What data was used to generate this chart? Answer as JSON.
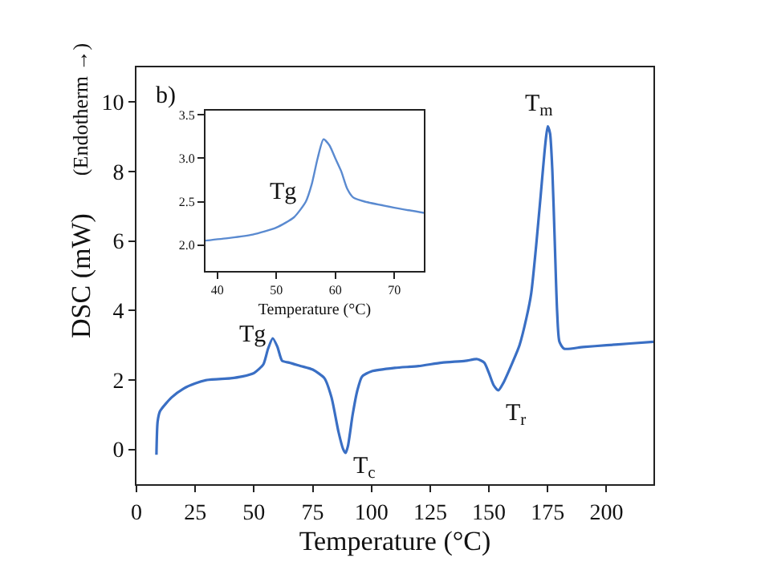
{
  "chart_data": [
    {
      "type": "line",
      "xlabel": "Temperature (°C)",
      "ylabel": "DSC (mW)",
      "xlim": [
        0,
        220
      ],
      "ylim": [
        -1,
        11
      ],
      "xticks": [
        0,
        25,
        50,
        75,
        100,
        125,
        150,
        175,
        200
      ],
      "yticks": [
        0,
        2,
        4,
        6,
        8,
        10
      ],
      "grid": false,
      "marker": "none",
      "line_style": "solid",
      "series": [
        {
          "color": "#3a6fc4",
          "x": [
            8.5,
            9,
            10,
            15,
            20,
            25,
            30,
            40,
            45,
            50,
            54,
            56,
            58,
            60,
            62,
            65,
            70,
            75,
            80,
            83,
            86,
            88,
            89,
            90,
            92,
            94,
            96,
            100,
            110,
            120,
            130,
            140,
            145,
            148,
            150,
            152,
            154,
            156,
            160,
            163,
            166,
            168,
            170,
            172,
            174,
            175,
            176,
            177,
            178,
            179,
            180,
            182,
            190,
            200,
            210,
            220
          ],
          "values": [
            -0.15,
            0.8,
            1.1,
            1.5,
            1.75,
            1.9,
            2.0,
            2.05,
            2.1,
            2.2,
            2.45,
            2.9,
            3.2,
            2.95,
            2.55,
            2.5,
            2.4,
            2.3,
            2.05,
            1.5,
            0.5,
            0,
            -0.1,
            0.1,
            1.0,
            1.7,
            2.1,
            2.25,
            2.35,
            2.4,
            2.5,
            2.55,
            2.6,
            2.5,
            2.2,
            1.85,
            1.7,
            1.9,
            2.5,
            3.0,
            3.8,
            4.5,
            5.8,
            7.3,
            8.8,
            9.3,
            9.1,
            8.0,
            6.0,
            4.0,
            3.1,
            2.9,
            2.95,
            3.0,
            3.05,
            3.1
          ]
        }
      ],
      "annotations": [
        "b)",
        "(Endotherm →)",
        {
          "text": "Tg",
          "x": 57,
          "y": 3.2
        },
        {
          "text": "T$_{c}$",
          "x": 89,
          "y": -0.1
        },
        {
          "text": "T$_{r}$",
          "x": 154,
          "y": 1.7
        },
        {
          "text": "T$_{m}$",
          "x": 175,
          "y": 9.3
        }
      ]
    },
    {
      "type": "line",
      "xlabel": "Temperature (°C)",
      "xlim": [
        38,
        75
      ],
      "ylim": [
        1.7,
        3.55
      ],
      "xticks": [
        40,
        50,
        60,
        70
      ],
      "yticks": [
        {
          "value": 2,
          "label": "2.0"
        },
        2.5,
        {
          "value": 3,
          "label": "3.0"
        },
        3.5
      ],
      "grid": false,
      "marker": "none",
      "line_style": "solid",
      "series": [
        {
          "color": "#5a8ad0",
          "x": [
            38,
            42,
            46,
            50,
            53,
            55,
            56,
            57,
            58,
            59,
            60,
            61,
            62,
            63,
            65,
            70,
            75
          ],
          "values": [
            2.05,
            2.08,
            2.12,
            2.2,
            2.32,
            2.5,
            2.7,
            3.0,
            3.22,
            3.15,
            3.0,
            2.85,
            2.65,
            2.55,
            2.5,
            2.43,
            2.37
          ]
        }
      ],
      "annotations": [
        "Tg"
      ]
    }
  ]
}
